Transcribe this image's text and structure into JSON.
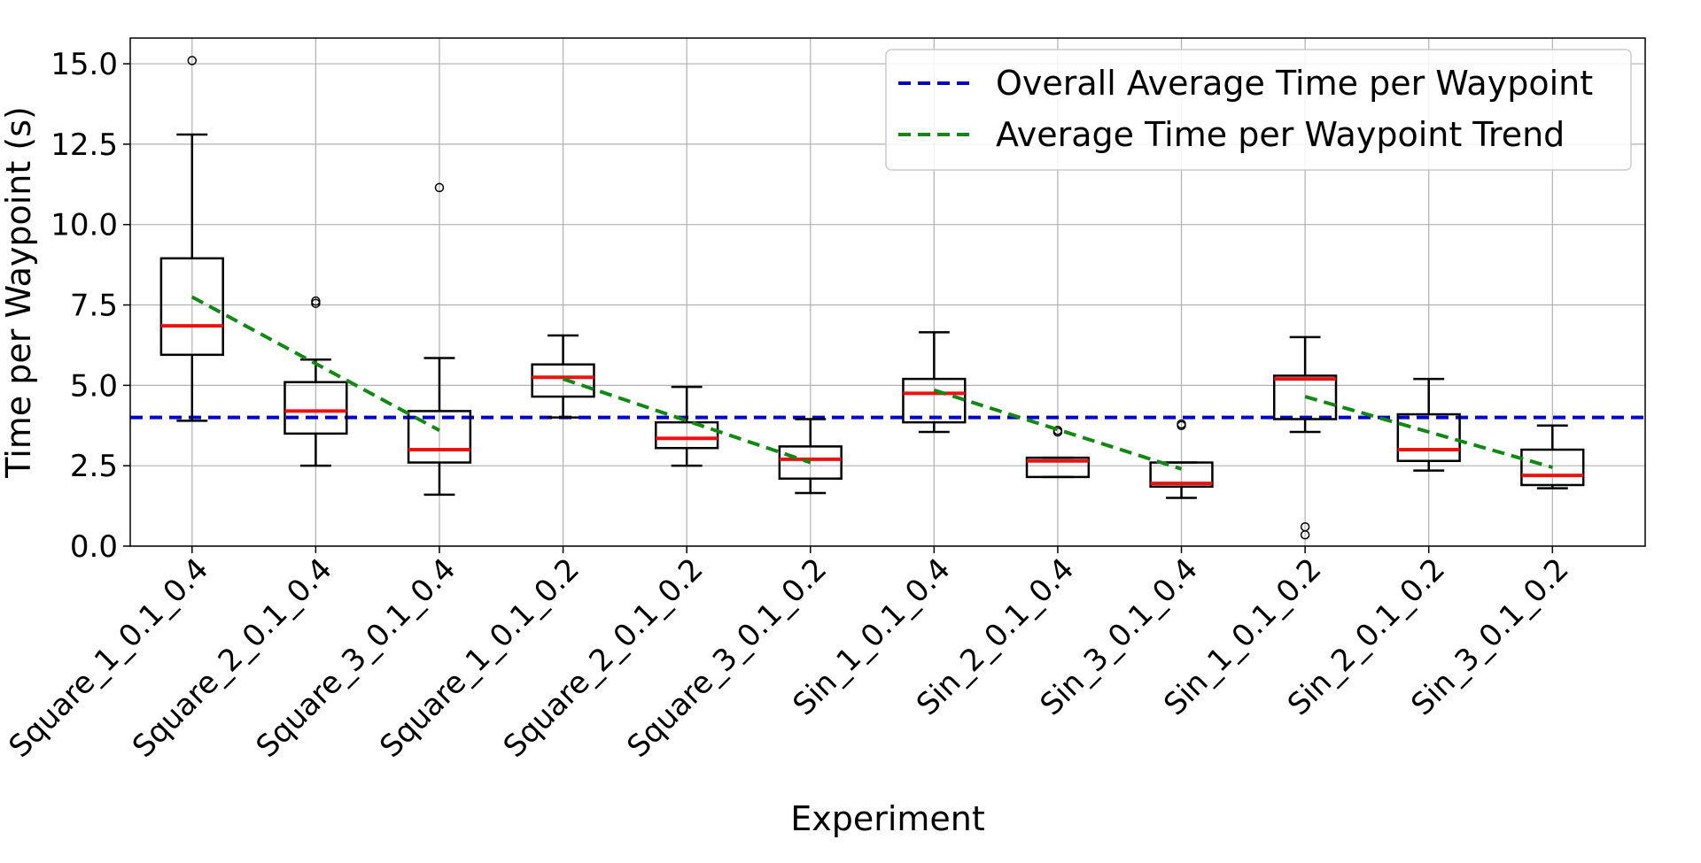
{
  "chart_data": {
    "type": "box",
    "title": "",
    "xlabel": "Experiment",
    "ylabel": "Time per Waypoint (s)",
    "ylim": [
      0,
      15.8
    ],
    "yticks": [
      "0.0",
      "2.5",
      "5.0",
      "7.5",
      "10.0",
      "12.5",
      "15.0"
    ],
    "grid": true,
    "legend_position": "top-right",
    "categories": [
      "Square_1_0.1_0.4",
      "Square_2_0.1_0.4",
      "Square_3_0.1_0.4",
      "Square_1_0.1_0.2",
      "Square_2_0.1_0.2",
      "Square_3_0.1_0.2",
      "Sin_1_0.1_0.4",
      "Sin_2_0.1_0.4",
      "Sin_3_0.1_0.4",
      "Sin_1_0.1_0.2",
      "Sin_2_0.1_0.2",
      "Sin_3_0.1_0.2"
    ],
    "boxes": [
      {
        "whisker_low": 3.9,
        "q1": 5.95,
        "median": 6.85,
        "q3": 8.95,
        "whisker_high": 12.8,
        "outliers": [
          15.1
        ]
      },
      {
        "whisker_low": 2.5,
        "q1": 3.5,
        "median": 4.2,
        "q3": 5.1,
        "whisker_high": 5.8,
        "outliers": [
          7.55,
          7.62
        ]
      },
      {
        "whisker_low": 1.6,
        "q1": 2.6,
        "median": 3.0,
        "q3": 4.2,
        "whisker_high": 5.85,
        "outliers": [
          11.15
        ]
      },
      {
        "whisker_low": 4.0,
        "q1": 4.65,
        "median": 5.25,
        "q3": 5.65,
        "whisker_high": 6.55,
        "outliers": []
      },
      {
        "whisker_low": 2.5,
        "q1": 3.05,
        "median": 3.35,
        "q3": 3.85,
        "whisker_high": 4.95,
        "outliers": []
      },
      {
        "whisker_low": 1.65,
        "q1": 2.1,
        "median": 2.7,
        "q3": 3.1,
        "whisker_high": 3.95,
        "outliers": []
      },
      {
        "whisker_low": 3.55,
        "q1": 3.85,
        "median": 4.75,
        "q3": 5.2,
        "whisker_high": 6.65,
        "outliers": []
      },
      {
        "whisker_low": 2.15,
        "q1": 2.15,
        "median": 2.65,
        "q3": 2.75,
        "whisker_high": 2.75,
        "outliers": [
          3.55,
          3.6
        ]
      },
      {
        "whisker_low": 1.5,
        "q1": 1.85,
        "median": 1.95,
        "q3": 2.6,
        "whisker_high": 2.6,
        "outliers": [
          3.75,
          3.8
        ]
      },
      {
        "whisker_low": 3.55,
        "q1": 3.95,
        "median": 5.2,
        "q3": 5.3,
        "whisker_high": 6.5,
        "outliers": [
          0.35,
          0.6
        ]
      },
      {
        "whisker_low": 2.35,
        "q1": 2.65,
        "median": 3.0,
        "q3": 4.1,
        "whisker_high": 5.2,
        "outliers": []
      },
      {
        "whisker_low": 1.8,
        "q1": 1.9,
        "median": 2.2,
        "q3": 3.0,
        "whisker_high": 3.75,
        "outliers": []
      }
    ],
    "reference_lines": [
      {
        "name": "Overall Average Time per Waypoint",
        "value": 4.0,
        "color": "#0000cc",
        "style": "dashed"
      }
    ],
    "trend_series": [
      {
        "name": "Average Time per Waypoint Trend",
        "color": "#118811",
        "style": "dashed",
        "segments": [
          {
            "x": [
              0,
              2
            ],
            "y": [
              7.75,
              3.6
            ]
          },
          {
            "x": [
              3,
              5
            ],
            "y": [
              5.2,
              2.6
            ]
          },
          {
            "x": [
              6,
              8
            ],
            "y": [
              4.85,
              2.4
            ]
          },
          {
            "x": [
              9,
              11
            ],
            "y": [
              4.65,
              2.45
            ]
          }
        ]
      }
    ],
    "colors": {
      "box": "#000000",
      "median": "#ee1111",
      "grid": "#b0b0b0"
    }
  }
}
